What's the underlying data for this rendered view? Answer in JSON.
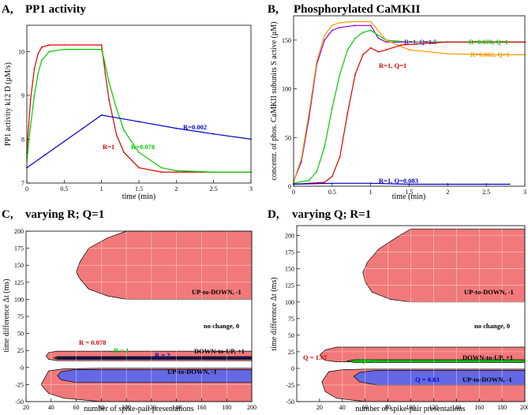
{
  "chart_data": [
    {
      "id": "A",
      "type": "line",
      "panel_label": "A,",
      "title": "PP1 activity",
      "xlabel": "time (min)",
      "ylabel": "PP1 activity  k12 D  (μM/s)",
      "xlim": [
        0,
        3
      ],
      "ylim": [
        7,
        10.6
      ],
      "xticks": [
        "0",
        "0.5",
        "1",
        "1.5",
        "2",
        "2.5",
        "3"
      ],
      "yticks": [
        "7",
        "8",
        "9",
        "10"
      ],
      "series": [
        {
          "name": "R=1",
          "color": "#dd0000",
          "x": [
            0,
            0.05,
            0.1,
            0.15,
            0.2,
            0.3,
            0.5,
            1.0,
            1.05,
            1.1,
            1.2,
            1.3,
            1.5,
            1.8,
            2.0,
            2.5,
            3.0
          ],
          "y": [
            7.7,
            8.9,
            9.6,
            9.95,
            10.1,
            10.15,
            10.15,
            10.15,
            9.5,
            8.9,
            8.1,
            7.7,
            7.35,
            7.25,
            7.25,
            7.25,
            7.25
          ]
        },
        {
          "name": "R=0.078",
          "color": "#00cc00",
          "x": [
            0,
            0.05,
            0.1,
            0.15,
            0.2,
            0.3,
            0.5,
            1.0,
            1.05,
            1.1,
            1.2,
            1.3,
            1.5,
            1.8,
            2.0,
            2.5,
            3.0
          ],
          "y": [
            7.5,
            8.3,
            9.0,
            9.5,
            9.8,
            10.0,
            10.05,
            10.05,
            9.7,
            9.3,
            8.7,
            8.2,
            7.7,
            7.35,
            7.28,
            7.25,
            7.25
          ]
        },
        {
          "name": "R=0.002",
          "color": "#0000cc",
          "x": [
            0,
            0.25,
            0.5,
            0.75,
            1.0,
            1.5,
            2.0,
            2.5,
            3.0
          ],
          "y": [
            7.35,
            7.65,
            7.95,
            8.25,
            8.55,
            8.4,
            8.25,
            8.12,
            8.0
          ]
        }
      ],
      "annotations": [
        "R=0.002",
        "R=1",
        "R=0.078"
      ]
    },
    {
      "id": "B",
      "type": "line",
      "panel_label": "B,",
      "title": "Phosphorylated CaMKII",
      "xlabel": "time (min)",
      "ylabel": "concentr. of phos. CaMKII subunits  S active (μM)",
      "xlim": [
        0,
        3
      ],
      "ylim": [
        0,
        175
      ],
      "xticks": [
        "0",
        "0.5",
        "1",
        "1.5",
        "2",
        "2.5",
        "3"
      ],
      "yticks": [
        "0",
        "50",
        "100",
        "150"
      ],
      "series": [
        {
          "name": "R=1, Q=1.5",
          "color": "#8800cc",
          "x": [
            0,
            0.1,
            0.2,
            0.3,
            0.4,
            0.5,
            0.6,
            0.8,
            1.0,
            1.1,
            1.2,
            1.5,
            2.0,
            3.0
          ],
          "y": [
            5,
            25,
            70,
            125,
            150,
            160,
            163,
            165,
            165,
            152,
            148,
            148,
            148,
            148
          ]
        },
        {
          "name": "R=0.078, Q=1",
          "color": "#00cc00",
          "x": [
            0,
            0.2,
            0.3,
            0.4,
            0.5,
            0.6,
            0.7,
            0.8,
            0.9,
            1.0,
            1.2,
            1.5,
            2.0,
            3.0
          ],
          "y": [
            3,
            6,
            15,
            40,
            80,
            115,
            140,
            152,
            158,
            160,
            150,
            148,
            148,
            148
          ]
        },
        {
          "name": "R=0.002, Q=1",
          "color": "#ff9900",
          "x": [
            0,
            0.1,
            0.2,
            0.3,
            0.4,
            0.5,
            0.6,
            0.8,
            1.0,
            1.2,
            1.5,
            2.0,
            2.5,
            3.0
          ],
          "y": [
            5,
            28,
            75,
            128,
            155,
            165,
            168,
            169,
            169,
            150,
            140,
            136,
            135,
            135
          ]
        },
        {
          "name": "R=1, Q=1",
          "color": "#dd0000",
          "x": [
            0,
            0.4,
            0.5,
            0.6,
            0.7,
            0.8,
            0.9,
            1.0,
            1.1,
            1.2,
            1.4,
            2.0,
            3.0
          ],
          "y": [
            2,
            4,
            10,
            30,
            75,
            115,
            135,
            142,
            138,
            140,
            145,
            148,
            148
          ]
        },
        {
          "name": "R=1, Q=0.083",
          "color": "#0000cc",
          "x": [
            0,
            0.5,
            1.0,
            1.5,
            2.0,
            2.8
          ],
          "y": [
            2,
            3,
            3,
            2,
            2,
            2
          ]
        }
      ],
      "annotations": [
        "R=1, Q=1.5",
        "R=0.078, Q=1",
        "R=0.002, Q=1",
        "R=1, Q=1",
        "R=1, Q=0.083"
      ]
    },
    {
      "id": "C",
      "type": "area",
      "panel_label": "C,",
      "title": "varying R; Q=1",
      "xlabel": "number of spike-pair presentations",
      "ylabel": "time difference  Δt (ms)",
      "xlim": [
        20,
        200
      ],
      "ylim": [
        -50,
        200
      ],
      "xticks": [
        "20",
        "40",
        "60",
        "80",
        "100",
        "120",
        "140",
        "160",
        "180",
        "200"
      ],
      "yticks": [
        "-50",
        "-25",
        "0",
        "25",
        "50",
        "75",
        "100",
        "125",
        "150",
        "175",
        "200"
      ],
      "regions": [
        {
          "label": "UP-to-DOWN, -1",
          "color": "#f06a6a",
          "x": [
            200,
            100,
            85,
            70,
            63,
            60,
            63,
            70,
            85,
            100,
            200
          ],
          "y": [
            100,
            100,
            105,
            115,
            130,
            140,
            155,
            175,
            190,
            200,
            200
          ]
        },
        {
          "label": "UP-to-DOWN, -1",
          "color": "#f06a6a",
          "x": [
            200,
            80,
            50,
            38,
            32,
            38,
            50,
            80,
            200
          ],
          "y": [
            -50,
            -50,
            -45,
            -38,
            -25,
            -5,
            -2,
            -1,
            -1
          ]
        },
        {
          "label": "R = 0.078",
          "color": "#f06a6a",
          "x": [
            200,
            45,
            38,
            36,
            38,
            45,
            200
          ],
          "y": [
            24,
            24,
            22,
            17,
            12,
            10,
            10
          ]
        },
        {
          "label": "R = 1",
          "color": "#00cc00",
          "x": [
            200,
            45,
            42,
            45,
            200
          ],
          "y": [
            16,
            16,
            14,
            12,
            12
          ]
        },
        {
          "label": "R = 2",
          "color": "#0000dd",
          "x": [
            200,
            46,
            44,
            46,
            200
          ],
          "y": [
            15,
            15,
            14,
            13,
            13
          ]
        },
        {
          "label": "UP-to-DOWN, -1",
          "color": "#5566ee",
          "x": [
            200,
            60,
            48,
            45,
            48,
            60,
            200
          ],
          "y": [
            -3,
            -3,
            -6,
            -12,
            -18,
            -22,
            -22
          ]
        }
      ],
      "annotations": [
        "UP-to-DOWN, -1",
        "no change, 0",
        "R = 0.078",
        "R = 1",
        "R = 2",
        "DOWN-to-UP, +1",
        "UP-to-DOWN, -1"
      ]
    },
    {
      "id": "D",
      "type": "area",
      "panel_label": "D,",
      "title": "varying Q; R=1",
      "xlabel": "number of spike-pair presentations",
      "ylabel": "time difference  Δt (ms)",
      "xlim": [
        0,
        200
      ],
      "ylim": [
        -50,
        215
      ],
      "xticks": [
        "20",
        "40",
        "60",
        "80",
        "100",
        "120",
        "140",
        "160",
        "180",
        "200"
      ],
      "yticks": [
        "-50",
        "-25",
        "0",
        "25",
        "50",
        "75",
        "100",
        "125",
        "150",
        "175",
        "200"
      ],
      "regions": [
        {
          "label": "UP-to-DOWN, -1",
          "color": "#f06a6a",
          "x": [
            200,
            100,
            82,
            66,
            60,
            58,
            62,
            72,
            90,
            100,
            200
          ],
          "y": [
            100,
            100,
            104,
            115,
            130,
            145,
            160,
            180,
            200,
            210,
            210
          ]
        },
        {
          "label": "Q = 1.67",
          "color": "#f06a6a",
          "x": [
            200,
            35,
            25,
            20,
            25,
            35,
            200
          ],
          "y": [
            32,
            32,
            28,
            20,
            12,
            10,
            10
          ]
        },
        {
          "label": "Q = 1",
          "color": "#00cc00",
          "x": [
            200,
            50,
            44,
            50,
            200
          ],
          "y": [
            13,
            13,
            11,
            9,
            9
          ]
        },
        {
          "label": "UP-to-DOWN, -1",
          "color": "#f06a6a",
          "x": [
            200,
            60,
            35,
            25,
            22,
            28,
            40,
            60,
            200
          ],
          "y": [
            -50,
            -50,
            -45,
            -35,
            -20,
            -5,
            -2,
            -1,
            -1
          ]
        },
        {
          "label": "Q = 0.83",
          "color": "#5566ee",
          "x": [
            200,
            70,
            55,
            50,
            55,
            70,
            200
          ],
          "y": [
            -3,
            -3,
            -6,
            -12,
            -20,
            -25,
            -25
          ]
        }
      ],
      "annotations": [
        "UP-to-DOWN, -1",
        "no change, 0",
        "Q = 1.67",
        "Q = 1",
        "DOWN-to-UP, +1",
        "Q = 0.83",
        "UP-to-DOWN, -1"
      ]
    }
  ]
}
